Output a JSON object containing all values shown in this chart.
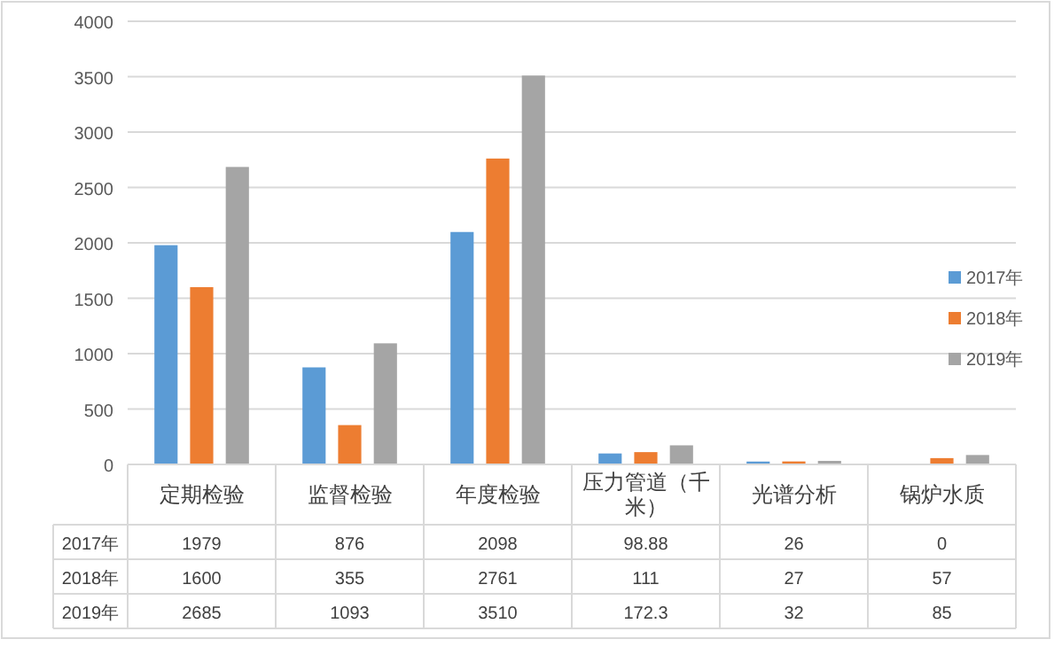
{
  "chart_data": {
    "type": "bar",
    "categories": [
      "定期检验",
      "监督检验",
      "年度检验",
      "压力管道（千米）",
      "光谱分析",
      "锅炉水质"
    ],
    "series": [
      {
        "name": "2017年",
        "color": "#5b9bd5",
        "values": [
          1979,
          876,
          2098,
          98.88,
          26,
          0
        ]
      },
      {
        "name": "2018年",
        "color": "#ed7d31",
        "values": [
          1600,
          355,
          2761,
          111,
          27,
          57
        ]
      },
      {
        "name": "2019年",
        "color": "#a5a5a5",
        "values": [
          2685,
          1093,
          3510,
          172.3,
          32,
          85
        ]
      }
    ],
    "ylim": [
      0,
      4000
    ],
    "yticks": [
      0,
      500,
      1000,
      1500,
      2000,
      2500,
      3000,
      3500,
      4000
    ],
    "grid": "y",
    "legend": "right",
    "data_labels": true
  }
}
